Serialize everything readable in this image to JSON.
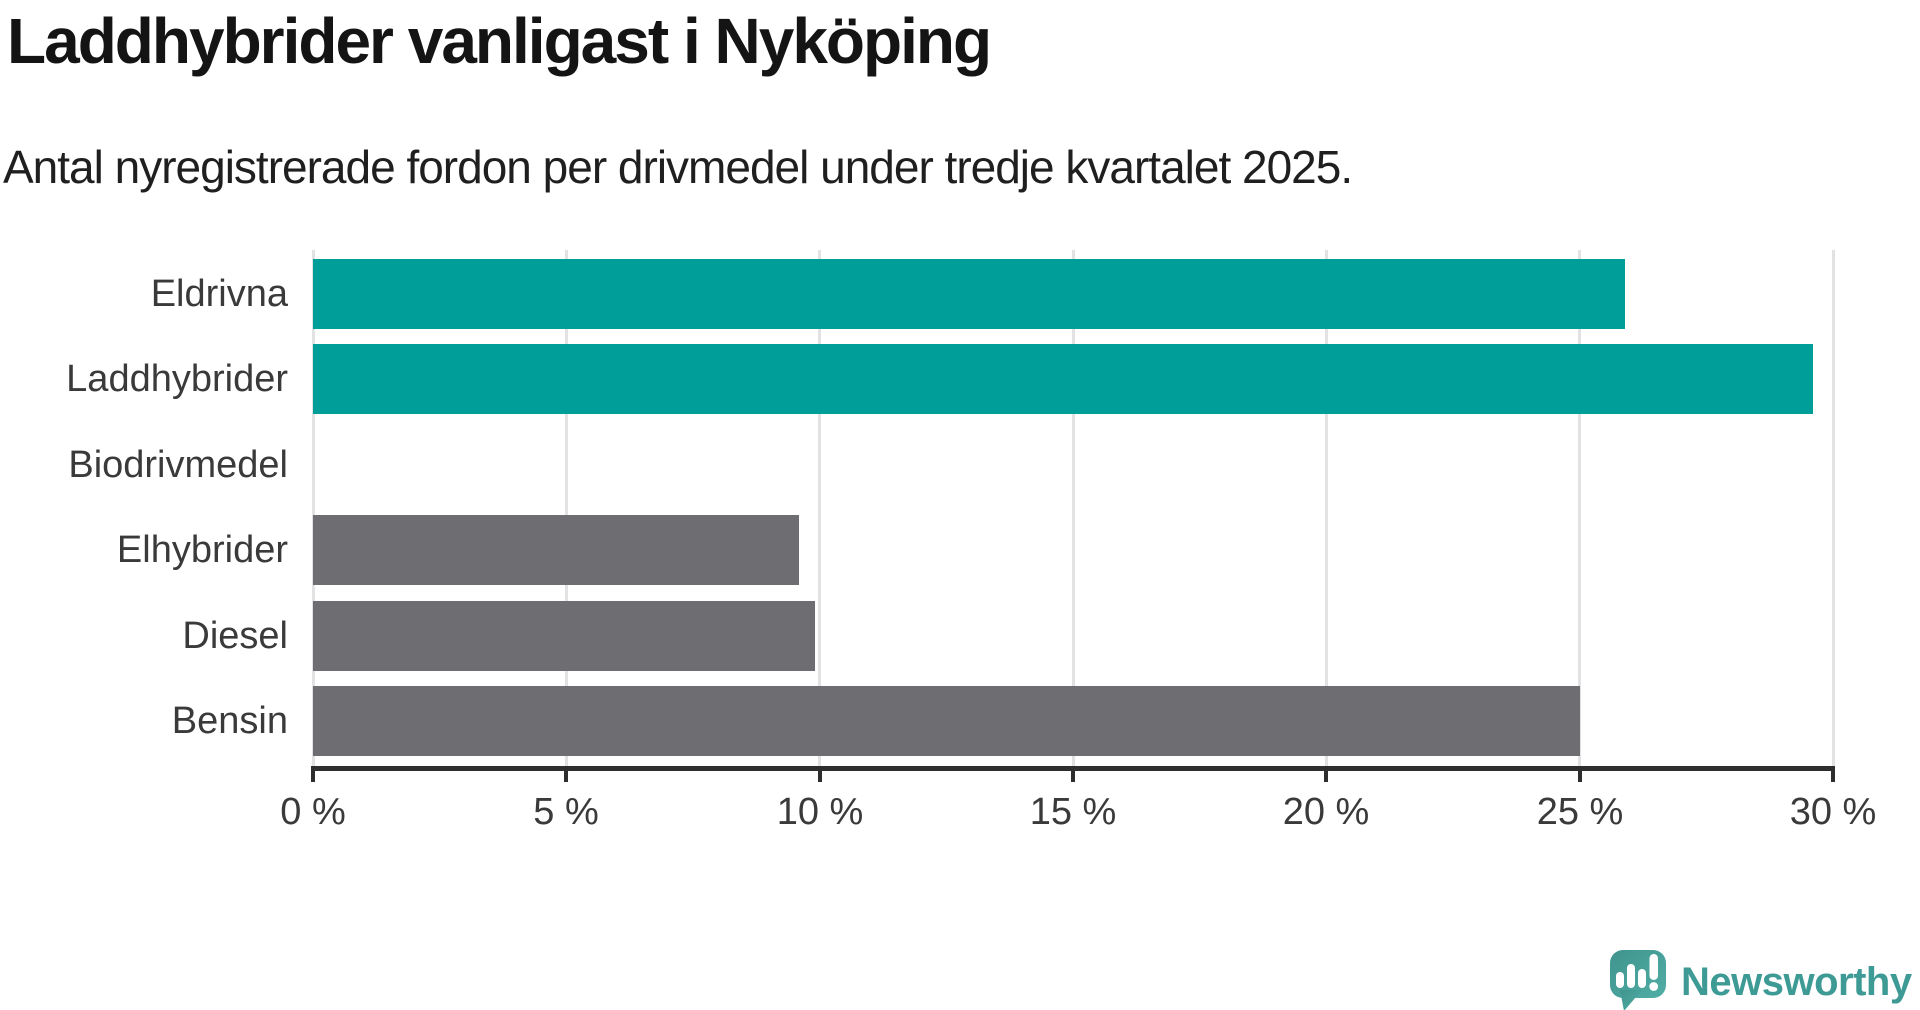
{
  "header": {
    "title": "Laddhybrider vanligast i Nyköping",
    "subtitle": "Antal nyregistrerade fordon per drivmedel under tredje kvartalet 2025."
  },
  "chart_data": {
    "type": "bar",
    "orientation": "horizontal",
    "title": "Laddhybrider vanligast i Nyköping",
    "subtitle": "Antal nyregistrerade fordon per drivmedel under tredje kvartalet 2025.",
    "categories": [
      "Eldrivna",
      "Laddhybrider",
      "Biodrivmedel",
      "Elhybrider",
      "Diesel",
      "Bensin"
    ],
    "values": [
      25.9,
      29.6,
      0,
      9.6,
      9.9,
      25.0
    ],
    "unit": "%",
    "xlim": [
      0,
      30
    ],
    "x_tick_values": [
      0,
      5,
      10,
      15,
      20,
      25,
      30
    ],
    "x_tick_labels": [
      "0 %",
      "5 %",
      "10 %",
      "15 %",
      "20 %",
      "25 %",
      "30 %"
    ],
    "grid": true,
    "legend": "none",
    "bar_colors": [
      "#009e98",
      "#009e98",
      "#6d6d72",
      "#6d6d72",
      "#6d6d72",
      "#6d6d72"
    ],
    "highlight_color": "#009e98",
    "default_color": "#6d6d72",
    "gridline_color": "#e2e2e4",
    "axis_color": "#2e2e2e"
  },
  "branding": {
    "wordmark": "Newsworthy",
    "wordmark_color": "#3e9a94",
    "logo_color_top": "#40948e",
    "logo_color_bottom": "#50aea5",
    "logo_icon": "newsworthy-speech-bubble-bar-chart-icon"
  }
}
